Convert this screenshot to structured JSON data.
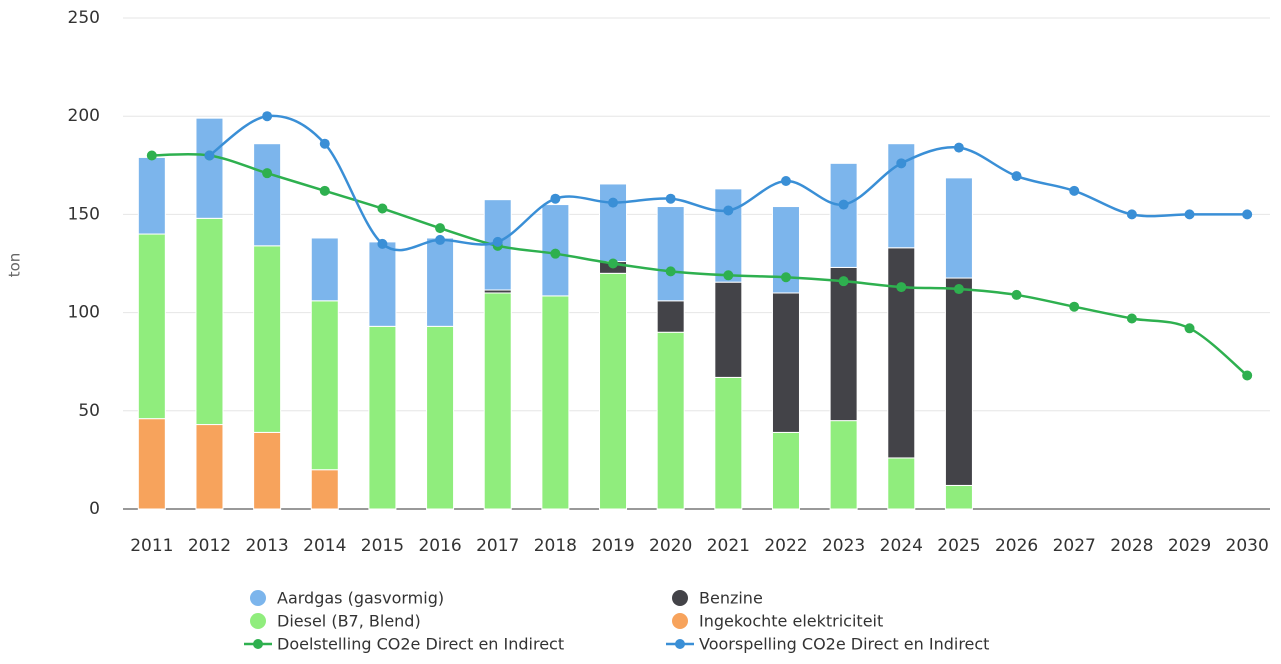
{
  "chart_data": {
    "type": "bar",
    "y_label": "ton",
    "categories": [
      "2011",
      "2012",
      "2013",
      "2014",
      "2015",
      "2016",
      "2017",
      "2018",
      "2019",
      "2020",
      "2021",
      "2022",
      "2023",
      "2024",
      "2025",
      "2026",
      "2027",
      "2028",
      "2029",
      "2030"
    ],
    "ylim": [
      0,
      250
    ],
    "yticks": [
      0,
      50,
      100,
      150,
      200,
      250
    ],
    "grid": true,
    "series": [
      {
        "name": "Aardgas (gasvormig)",
        "type": "bar",
        "color": "#7cb5ec",
        "values": [
          39,
          51,
          52,
          32,
          43,
          45,
          46,
          46.5,
          39.5,
          48,
          47.5,
          44,
          53,
          53,
          51,
          null,
          null,
          null,
          null,
          null
        ]
      },
      {
        "name": "Benzine",
        "type": "bar",
        "color": "#434348",
        "values": [
          null,
          null,
          null,
          null,
          null,
          null,
          1.5,
          null,
          6,
          16,
          48.5,
          71,
          78,
          107,
          105.6,
          null,
          null,
          null,
          null,
          null
        ]
      },
      {
        "name": "Diesel (B7, Blend)",
        "type": "bar",
        "color": "#90ed7d",
        "values": [
          94,
          105,
          95,
          86,
          93,
          93,
          110,
          108.5,
          120,
          90,
          67,
          39,
          45,
          26,
          12,
          null,
          null,
          null,
          null,
          null
        ]
      },
      {
        "name": "Ingekochte elektriciteit",
        "type": "bar",
        "color": "#f7a35c",
        "values": [
          46,
          43,
          39,
          20,
          null,
          null,
          null,
          null,
          null,
          null,
          null,
          null,
          null,
          null,
          null,
          null,
          null,
          null,
          null,
          null
        ]
      },
      {
        "name": "Doelstelling CO2e Direct en Indirect",
        "type": "line",
        "color": "#2eb04f",
        "values": [
          180,
          180,
          171,
          162,
          153,
          143,
          134,
          130,
          125,
          121,
          119,
          118,
          116,
          113,
          112,
          109,
          103,
          97,
          92,
          68
        ]
      },
      {
        "name": "Voorspelling CO2e Direct en Indirect",
        "type": "line",
        "color": "#3a8fd6",
        "values": [
          null,
          180,
          200,
          186,
          135,
          137,
          136,
          158,
          156,
          158,
          152,
          167,
          155,
          176,
          184,
          169.5,
          162,
          150,
          150,
          150
        ]
      }
    ]
  }
}
